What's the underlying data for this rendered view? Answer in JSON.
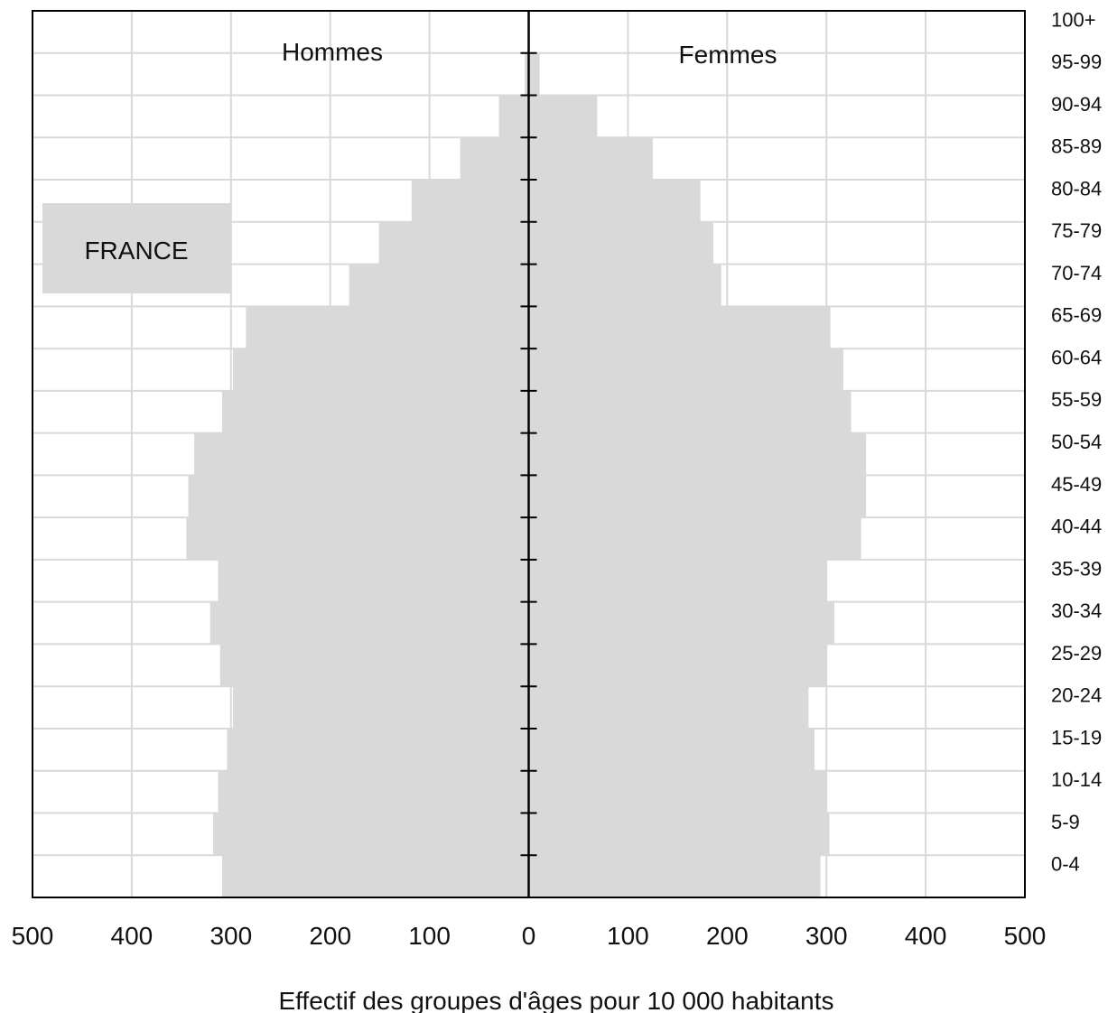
{
  "chart_data": {
    "type": "bar",
    "orientation": "horizontal",
    "subtype": "population-pyramid",
    "categories": [
      "0-4",
      "5-9",
      "10-14",
      "15-19",
      "20-24",
      "25-29",
      "30-34",
      "35-39",
      "40-44",
      "45-49",
      "50-54",
      "55-59",
      "60-64",
      "65-69",
      "70-74",
      "75-79",
      "80-84",
      "85-89",
      "90-94",
      "95-99",
      "100+"
    ],
    "series": [
      {
        "name": "Hommes",
        "values": [
          309,
          318,
          313,
          304,
          298,
          311,
          321,
          313,
          345,
          343,
          337,
          309,
          298,
          285,
          181,
          151,
          118,
          69,
          30,
          4,
          0
        ]
      },
      {
        "name": "Femmes",
        "values": [
          294,
          303,
          300,
          288,
          282,
          300,
          308,
          300,
          335,
          340,
          340,
          325,
          317,
          304,
          194,
          186,
          173,
          125,
          69,
          11,
          1
        ]
      }
    ],
    "xlabel": "Effectif des groupes d'âges pour 10 000  habitants",
    "xlim": [
      -500,
      500
    ],
    "xticks": [
      "500",
      "400",
      "300",
      "200",
      "100",
      "0",
      "100",
      "200",
      "300",
      "400",
      "500"
    ],
    "grid": true,
    "annotation": "FRANCE",
    "colors": {
      "bar": "#d9d9d9",
      "grid": "#d9d9d9",
      "axis": "#000000",
      "annotation_box": "#d9d9d9"
    }
  }
}
